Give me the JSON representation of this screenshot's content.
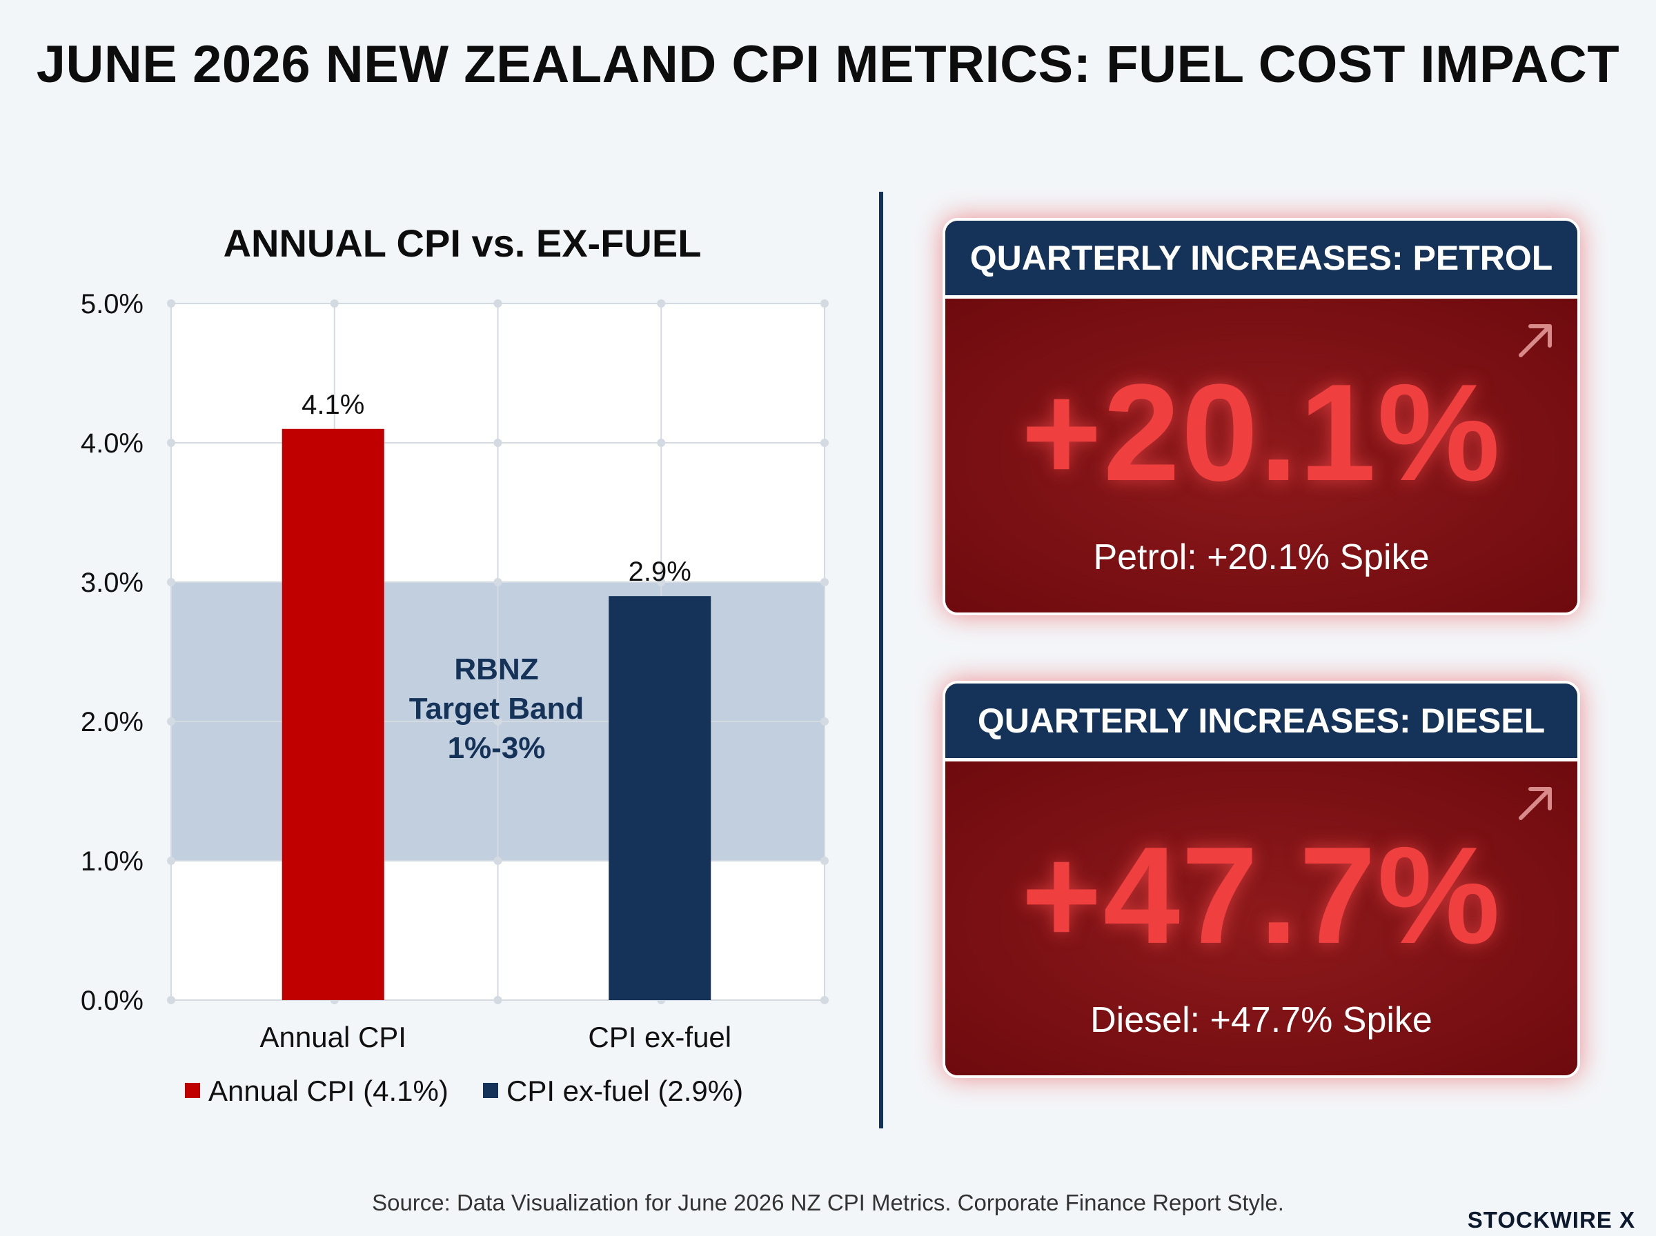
{
  "title": "JUNE 2026 NEW ZEALAND CPI METRICS: FUEL COST IMPACT",
  "chart_data": {
    "type": "bar",
    "title": "ANNUAL CPI vs. EX-FUEL",
    "categories": [
      "Annual CPI",
      "CPI ex-fuel"
    ],
    "values": [
      4.1,
      2.9
    ],
    "data_labels": [
      "4.1%",
      "2.9%"
    ],
    "colors": [
      "#c00000",
      "#153358"
    ],
    "ylim": [
      0,
      5
    ],
    "yticks": [
      0,
      1,
      2,
      3,
      4,
      5
    ],
    "ytick_labels": [
      "0.0%",
      "1.0%",
      "2.0%",
      "3.0%",
      "4.0%",
      "5.0%"
    ],
    "xlabel": "",
    "ylabel": "",
    "grid": true,
    "legend": {
      "placement": "bottom",
      "entries": [
        "Annual CPI (4.1%)",
        "CPI ex-fuel (2.9%)"
      ]
    },
    "band": {
      "range": [
        1,
        3
      ],
      "label": [
        "RBNZ",
        "Target Band",
        "1%-3%"
      ],
      "color": "#c2cfdf"
    }
  },
  "cards": [
    {
      "header": "QUARTERLY INCREASES: PETROL",
      "value": "+20.1%",
      "caption": "Petrol: +20.1% Spike",
      "icon": "arrow-up-right-icon"
    },
    {
      "header": "QUARTERLY INCREASES: DIESEL",
      "value": "+47.7%",
      "caption": "Diesel: +47.7% Spike",
      "icon": "arrow-up-right-icon"
    }
  ],
  "footer": {
    "source": "Source: Data Visualization for June 2026 NZ CPI Metrics. Corporate Finance Report Style.",
    "brand": "STOCKWIRE X"
  }
}
